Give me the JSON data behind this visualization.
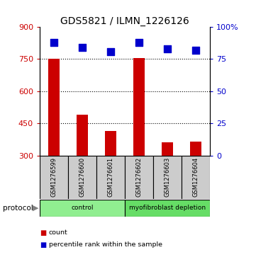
{
  "title": "GDS5821 / ILMN_1226126",
  "samples": [
    "GSM1276599",
    "GSM1276600",
    "GSM1276601",
    "GSM1276602",
    "GSM1276603",
    "GSM1276604"
  ],
  "counts": [
    750,
    490,
    415,
    755,
    360,
    365
  ],
  "percentiles": [
    88,
    84,
    81,
    88,
    83,
    82
  ],
  "ylim_left": [
    300,
    900
  ],
  "ylim_right": [
    0,
    100
  ],
  "yticks_left": [
    300,
    450,
    600,
    750,
    900
  ],
  "yticks_right": [
    0,
    25,
    50,
    75,
    100
  ],
  "grid_values": [
    450,
    600,
    750
  ],
  "bar_color": "#cc0000",
  "dot_color": "#0000cc",
  "bar_bottom": 300,
  "protocol_groups": [
    {
      "label": "control",
      "start": 0,
      "end": 3,
      "color": "#90ee90"
    },
    {
      "label": "myofibroblast depletion",
      "start": 3,
      "end": 6,
      "color": "#66dd66"
    }
  ],
  "tick_color_left": "#cc0000",
  "tick_color_right": "#0000cc",
  "legend_count_color": "#cc0000",
  "legend_percentile_color": "#0000cc",
  "label_count": "count",
  "label_percentile": "percentile rank within the sample",
  "protocol_label": "protocol",
  "sample_box_color": "#cccccc",
  "dot_size": 45,
  "bar_width": 0.4
}
